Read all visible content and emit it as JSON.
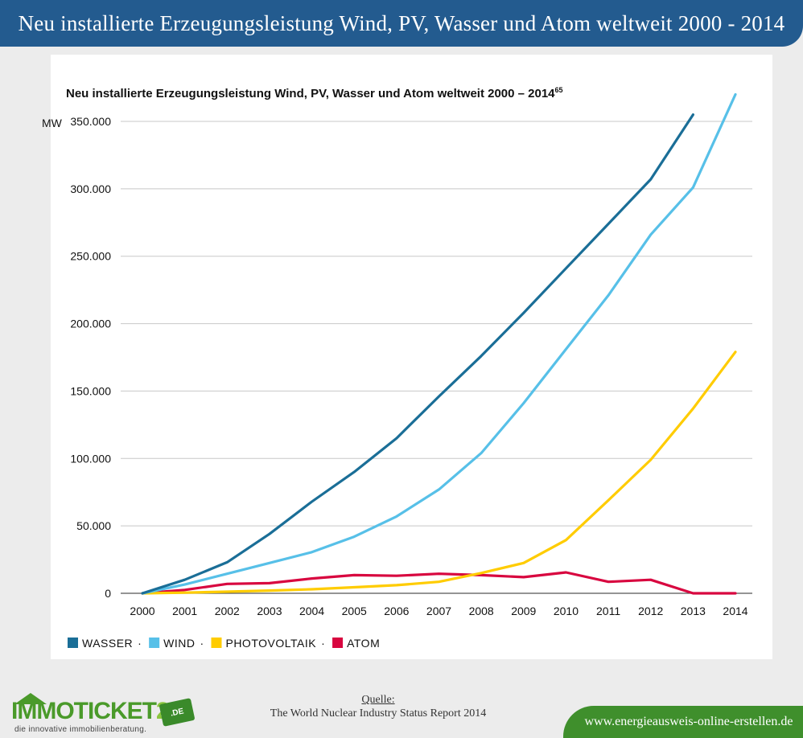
{
  "header": {
    "title": "Neu installierte Erzeugungsleistung Wind, PV, Wasser und Atom weltweit 2000 - 2014"
  },
  "chart_data": {
    "type": "line",
    "title": "Neu installierte Erzeugungsleistung Wind, PV, Wasser und Atom weltweit 2000 – 2014",
    "title_footnote": "65",
    "ylabel": "MW",
    "xlabel": "",
    "ylim": [
      0,
      350000
    ],
    "grid": true,
    "legend_position": "bottom-left",
    "x": [
      "2000",
      "2001",
      "2002",
      "2003",
      "2004",
      "2005",
      "2006",
      "2007",
      "2008",
      "2009",
      "2010",
      "2011",
      "2012",
      "2013",
      "2014"
    ],
    "y_ticks": [
      0,
      50000,
      100000,
      150000,
      200000,
      250000,
      300000,
      350000
    ],
    "y_tick_labels": [
      "0",
      "50.000",
      "100.000",
      "150.000",
      "200.000",
      "250.000",
      "300.000",
      "350.000"
    ],
    "series": [
      {
        "name": "WASSER",
        "color": "#1a6e97",
        "values": [
          0,
          10000,
          23000,
          44000,
          68000,
          90000,
          115000,
          146000,
          176000,
          208000,
          241000,
          274000,
          307000,
          355000,
          null
        ]
      },
      {
        "name": "WIND",
        "color": "#57c0e8",
        "values": [
          0,
          6500,
          14500,
          22500,
          30500,
          42000,
          57000,
          77000,
          104000,
          141000,
          181000,
          221000,
          266000,
          301000,
          370000
        ]
      },
      {
        "name": "PHOTOVOLTAIK",
        "color": "#ffcc00",
        "values": [
          0,
          500,
          1200,
          2000,
          3000,
          4500,
          6000,
          8500,
          15000,
          22500,
          39500,
          69000,
          99000,
          137000,
          179000
        ]
      },
      {
        "name": "ATOM",
        "color": "#d8063f",
        "values": [
          0,
          2500,
          7000,
          7500,
          11000,
          13500,
          13000,
          14500,
          13500,
          12000,
          15500,
          8500,
          10000,
          0,
          0
        ]
      }
    ]
  },
  "source": {
    "label": "Quelle:",
    "text": "The World Nuclear Industry Status Report 2014"
  },
  "logo": {
    "word": "IMMOTICKET",
    "number": "24",
    "badge": ".DE",
    "tagline": "die innovative immobilienberatung."
  },
  "site": {
    "url": "www.energieausweis-online-erstellen.de"
  }
}
